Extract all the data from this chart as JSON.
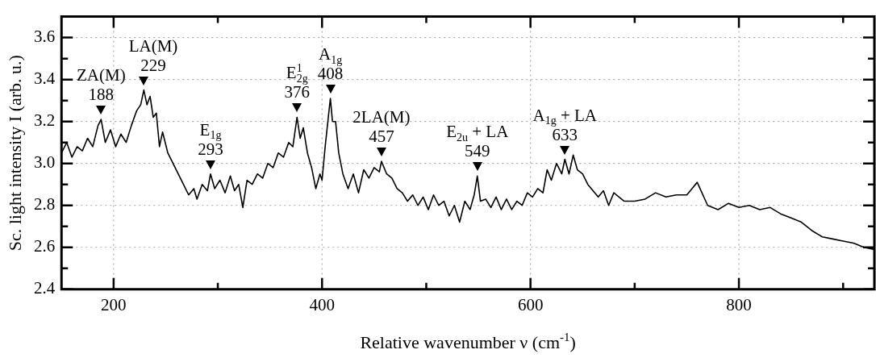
{
  "chart_data": {
    "type": "line",
    "xlabel": "Relative wavenumber ν (cm$^{-1}$)",
    "ylabel": "Sc. light intensity I (arb. u.)",
    "xlim": [
      150,
      930
    ],
    "ylim": [
      2.4,
      3.7
    ],
    "xticks": [
      200,
      {
        "value": 300,
        "label": null
      },
      400,
      {
        "value": 500,
        "label": null
      },
      600,
      {
        "value": 700,
        "label": null
      },
      800,
      {
        "value": 900,
        "label": null
      }
    ],
    "yticks": [
      2.4,
      {
        "value": 2.5,
        "label": null
      },
      2.6,
      {
        "value": 2.7,
        "label": null
      },
      2.8,
      {
        "value": 2.9,
        "label": null
      },
      {
        "value": 3,
        "label": "3.0"
      },
      {
        "value": 3.1,
        "label": null
      },
      3.2,
      {
        "value": 3.3,
        "label": null
      },
      3.4,
      {
        "value": 3.5,
        "label": null
      },
      3.6
    ],
    "grid": true,
    "legend": false,
    "marker": "none",
    "line_style": "solid",
    "series": [
      {
        "color": "#000000",
        "x": [
          150,
          155,
          160,
          165,
          170,
          175,
          180,
          185,
          188,
          192,
          197,
          202,
          207,
          212,
          217,
          222,
          226,
          229,
          232,
          235,
          238,
          241,
          244,
          247,
          252,
          257,
          262,
          267,
          272,
          277,
          280,
          285,
          290,
          293,
          297,
          302,
          307,
          312,
          316,
          320,
          324,
          328,
          333,
          338,
          343,
          348,
          353,
          358,
          363,
          368,
          372,
          376,
          379,
          382,
          386,
          390,
          394,
          398,
          400,
          403,
          406,
          408,
          410,
          413,
          416,
          420,
          425,
          430,
          435,
          440,
          445,
          450,
          455,
          457,
          462,
          467,
          472,
          477,
          482,
          487,
          492,
          497,
          502,
          507,
          512,
          517,
          522,
          527,
          532,
          537,
          542,
          546,
          549,
          552,
          557,
          562,
          567,
          572,
          577,
          582,
          587,
          592,
          597,
          602,
          607,
          612,
          616,
          620,
          625,
          630,
          633,
          637,
          641,
          645,
          650,
          655,
          660,
          665,
          670,
          675,
          680,
          690,
          700,
          710,
          720,
          730,
          740,
          750,
          755,
          760,
          770,
          780,
          790,
          800,
          810,
          820,
          830,
          840,
          850,
          860,
          870,
          880,
          890,
          900,
          910,
          920,
          930
        ],
        "values": [
          3.05,
          3.1,
          3.03,
          3.08,
          3.06,
          3.12,
          3.08,
          3.18,
          3.21,
          3.1,
          3.16,
          3.08,
          3.14,
          3.1,
          3.18,
          3.25,
          3.28,
          3.35,
          3.28,
          3.32,
          3.22,
          3.24,
          3.08,
          3.15,
          3.05,
          3.0,
          2.95,
          2.9,
          2.85,
          2.88,
          2.83,
          2.9,
          2.87,
          2.95,
          2.88,
          2.92,
          2.86,
          2.94,
          2.87,
          2.9,
          2.79,
          2.92,
          2.9,
          2.95,
          2.93,
          3.0,
          2.98,
          3.05,
          3.03,
          3.1,
          3.08,
          3.22,
          3.12,
          3.17,
          3.05,
          2.98,
          2.88,
          2.95,
          2.92,
          3.08,
          3.22,
          3.31,
          3.2,
          3.2,
          3.05,
          2.95,
          2.88,
          2.95,
          2.86,
          2.97,
          2.93,
          2.98,
          2.96,
          3.01,
          2.95,
          2.93,
          2.88,
          2.86,
          2.82,
          2.85,
          2.8,
          2.84,
          2.78,
          2.85,
          2.8,
          2.82,
          2.75,
          2.8,
          2.72,
          2.82,
          2.78,
          2.85,
          2.94,
          2.82,
          2.83,
          2.79,
          2.84,
          2.78,
          2.83,
          2.78,
          2.82,
          2.8,
          2.86,
          2.84,
          2.88,
          2.86,
          2.97,
          2.92,
          3.0,
          2.95,
          3.02,
          2.95,
          3.04,
          2.97,
          2.95,
          2.9,
          2.87,
          2.84,
          2.87,
          2.8,
          2.86,
          2.82,
          2.82,
          2.83,
          2.86,
          2.84,
          2.85,
          2.85,
          2.88,
          2.91,
          2.8,
          2.78,
          2.81,
          2.79,
          2.8,
          2.78,
          2.79,
          2.76,
          2.74,
          2.72,
          2.68,
          2.65,
          2.64,
          2.63,
          2.62,
          2.6,
          2.59
        ]
      }
    ],
    "annotations": [
      {
        "text": "ZA(M)\n188",
        "x": 188,
        "y": 3.21
      },
      {
        "text": "LA(M)\n229",
        "x": 229,
        "y": 3.35
      },
      {
        "text": "E$_{1g}$\n293",
        "x": 293,
        "y": 2.95
      },
      {
        "text": "E$^{1}$$_{2g}$\n376",
        "x": 376,
        "y": 3.22
      },
      {
        "text": "A$_{1g}$\n408",
        "x": 408,
        "y": 3.31
      },
      {
        "text": "2LA(M)\n457",
        "x": 457,
        "y": 3.01
      },
      {
        "text": "E$_{2u}$ + LA\n549",
        "x": 549,
        "y": 2.94
      },
      {
        "text": "A$_{1g}$ + LA\n633",
        "x": 633,
        "y": 3.02
      }
    ]
  }
}
